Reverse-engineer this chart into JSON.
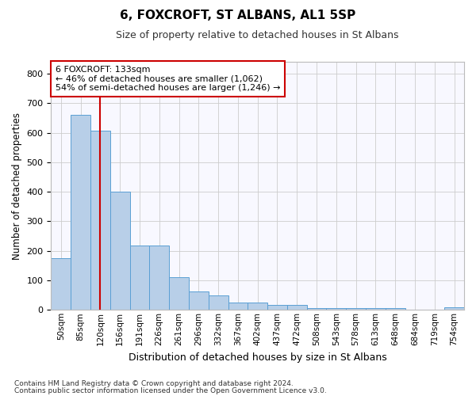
{
  "title1": "6, FOXCROFT, ST ALBANS, AL1 5SP",
  "title2": "Size of property relative to detached houses in St Albans",
  "xlabel": "Distribution of detached houses by size in St Albans",
  "ylabel": "Number of detached properties",
  "categories": [
    "50sqm",
    "85sqm",
    "120sqm",
    "156sqm",
    "191sqm",
    "226sqm",
    "261sqm",
    "296sqm",
    "332sqm",
    "367sqm",
    "402sqm",
    "437sqm",
    "472sqm",
    "508sqm",
    "543sqm",
    "578sqm",
    "613sqm",
    "648sqm",
    "684sqm",
    "719sqm",
    "754sqm"
  ],
  "values": [
    175,
    660,
    608,
    400,
    218,
    218,
    110,
    62,
    48,
    25,
    25,
    18,
    18,
    5,
    5,
    5,
    5,
    5,
    2,
    2,
    8
  ],
  "bar_color": "#b8cfe8",
  "bar_edge_color": "#5a9fd4",
  "red_line_x": 2.0,
  "annotation_text": "6 FOXCROFT: 133sqm\n← 46% of detached houses are smaller (1,062)\n54% of semi-detached houses are larger (1,246) →",
  "annotation_box_facecolor": "#ffffff",
  "annotation_box_edgecolor": "#cc0000",
  "grid_color": "#cccccc",
  "plot_bg_color": "#f8f8ff",
  "fig_bg_color": "#ffffff",
  "footer1": "Contains HM Land Registry data © Crown copyright and database right 2024.",
  "footer2": "Contains public sector information licensed under the Open Government Licence v3.0.",
  "ylim": [
    0,
    840
  ],
  "yticks": [
    0,
    100,
    200,
    300,
    400,
    500,
    600,
    700,
    800
  ]
}
